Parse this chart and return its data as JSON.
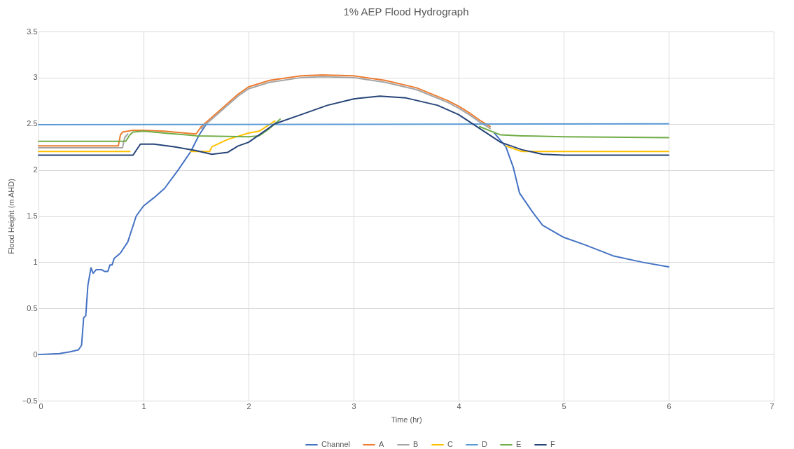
{
  "chart_data": {
    "type": "line",
    "title": "1% AEP Flood Hydrograph",
    "xlabel": "Time (hr)",
    "ylabel": "Flood Height (m AHD)",
    "xlim": [
      0,
      7
    ],
    "xticks": [
      0,
      1,
      2,
      3,
      4,
      5,
      6,
      7
    ],
    "ylim": [
      -0.5,
      3.5
    ],
    "yticks": [
      -0.5,
      0,
      0.5,
      1,
      1.5,
      2,
      2.5,
      3,
      3.5
    ],
    "grid": true,
    "legend": "bottom",
    "marker": "none",
    "line_style": "solid",
    "series": [
      {
        "name": "Channel",
        "color": "#4472c4",
        "x": [
          0,
          0.2,
          0.3,
          0.38,
          0.41,
          0.43,
          0.45,
          0.47,
          0.5,
          0.52,
          0.55,
          0.6,
          0.63,
          0.66,
          0.68,
          0.7,
          0.72,
          0.78,
          0.85,
          0.93,
          1.0,
          1.1,
          1.2,
          1.33,
          1.45,
          1.53,
          1.6,
          1.7,
          1.9,
          2.0,
          2.2,
          2.5,
          2.7,
          3.0,
          3.3,
          3.6,
          3.9,
          4.0,
          4.1,
          4.2,
          4.34,
          4.45,
          4.52,
          4.58,
          4.7,
          4.8,
          5.0,
          5.2,
          5.47,
          5.75,
          6.0
        ],
        "values": [
          0,
          0.01,
          0.03,
          0.05,
          0.1,
          0.4,
          0.42,
          0.75,
          0.94,
          0.88,
          0.92,
          0.92,
          0.9,
          0.9,
          0.97,
          0.97,
          1.04,
          1.1,
          1.22,
          1.5,
          1.61,
          1.7,
          1.8,
          2.0,
          2.2,
          2.38,
          2.5,
          null,
          null,
          null,
          null,
          null,
          null,
          null,
          null,
          null,
          null,
          null,
          null,
          null,
          2.4,
          2.25,
          2.03,
          1.75,
          1.55,
          1.4,
          1.27,
          1.19,
          1.07,
          1.0,
          0.95
        ]
      },
      {
        "name": "A",
        "color": "#ed7d31",
        "x": [
          0,
          0.76,
          0.78,
          0.8,
          0.9,
          1.0,
          1.2,
          1.4,
          1.5,
          1.55,
          1.7,
          1.9,
          2.0,
          2.2,
          2.5,
          2.7,
          3.0,
          3.3,
          3.6,
          3.9,
          4.0,
          4.1,
          4.2,
          4.3
        ],
        "values": [
          2.26,
          2.26,
          2.38,
          2.41,
          2.43,
          2.43,
          2.42,
          2.4,
          2.39,
          2.47,
          2.62,
          2.82,
          2.9,
          2.97,
          3.02,
          3.03,
          3.02,
          2.97,
          2.89,
          2.75,
          2.69,
          2.62,
          2.54,
          2.47
        ]
      },
      {
        "name": "B",
        "color": "#a5a5a5",
        "x": [
          0,
          0.8,
          0.82,
          0.85,
          0.9,
          1.0,
          1.2,
          1.4,
          1.5,
          1.55,
          1.7,
          1.9,
          2.0,
          2.2,
          2.5,
          2.7,
          3.0,
          3.3,
          3.6,
          3.9,
          4.0,
          4.1,
          4.2,
          4.3
        ],
        "values": [
          2.24,
          2.24,
          2.35,
          2.39,
          null,
          null,
          null,
          null,
          null,
          2.45,
          2.6,
          2.8,
          2.88,
          2.95,
          3.0,
          3.01,
          3.0,
          2.95,
          2.87,
          2.73,
          2.67,
          2.6,
          2.52,
          2.45
        ]
      },
      {
        "name": "C",
        "color": "#ffc000",
        "x": [
          0,
          0.87,
          0.97,
          1.1,
          1.3,
          1.45,
          1.63,
          1.65,
          1.8,
          2.0,
          2.1,
          2.25,
          2.5,
          2.75,
          3.0,
          3.25,
          3.5,
          3.8,
          4.0,
          4.2,
          4.45,
          4.6,
          6.0
        ],
        "values": [
          2.2,
          2.2,
          null,
          null,
          null,
          2.2,
          2.2,
          2.25,
          2.33,
          2.4,
          2.42,
          2.53,
          null,
          null,
          null,
          null,
          null,
          null,
          null,
          null,
          2.26,
          2.2,
          2.2
        ]
      },
      {
        "name": "D",
        "color": "#5b9bd5",
        "x": [
          0,
          6.0
        ],
        "values": [
          2.49,
          2.5
        ]
      },
      {
        "name": "E",
        "color": "#70ad47",
        "x": [
          0,
          0.83,
          0.87,
          0.9,
          1.0,
          1.2,
          1.5,
          2.0,
          2.1,
          2.2,
          2.3,
          2.5,
          2.75,
          3.0,
          3.25,
          3.5,
          3.8,
          4.0,
          4.2,
          4.4,
          4.6,
          5.0,
          6.0
        ],
        "values": [
          2.31,
          2.31,
          2.38,
          2.41,
          2.42,
          2.4,
          2.37,
          2.36,
          2.37,
          2.45,
          2.55,
          null,
          null,
          null,
          null,
          null,
          null,
          null,
          2.47,
          2.38,
          2.37,
          2.36,
          2.35
        ]
      },
      {
        "name": "F",
        "color": "#264478",
        "x": [
          0,
          0.9,
          0.97,
          1.1,
          1.3,
          1.5,
          1.65,
          1.8,
          1.9,
          2.0,
          2.1,
          2.25,
          2.5,
          2.75,
          3.0,
          3.25,
          3.5,
          3.8,
          4.0,
          4.2,
          4.4,
          4.6,
          4.8,
          5.0,
          6.0
        ],
        "values": [
          2.16,
          2.16,
          2.28,
          2.28,
          2.25,
          2.21,
          2.17,
          2.19,
          2.26,
          2.3,
          2.38,
          2.5,
          2.6,
          2.7,
          2.77,
          2.8,
          2.78,
          2.7,
          2.6,
          2.45,
          2.3,
          2.22,
          2.17,
          2.16,
          2.16
        ]
      }
    ]
  }
}
